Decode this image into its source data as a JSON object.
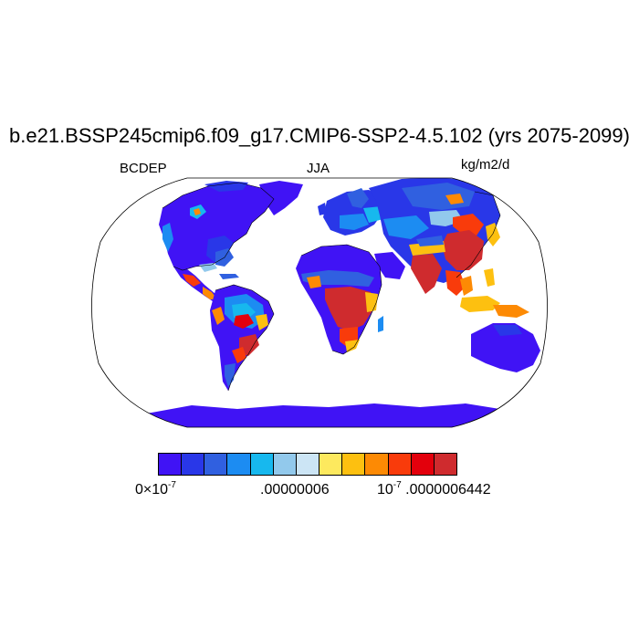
{
  "title": "b.e21.BSSP245cmip6.f09_g17.CMIP6-SSP2-4.5.102 (yrs 2075-2099)",
  "left_label": "BCDEP",
  "center_label": "JJA",
  "right_label": "kg/m2/d",
  "colorbar": {
    "colors": [
      "#4013f5",
      "#2937e8",
      "#3060e0",
      "#1c8cf2",
      "#17b8ee",
      "#92c9ec",
      "#cce5f5",
      "#fde95e",
      "#fdc010",
      "#fd8a04",
      "#f93b0b",
      "#e3000c",
      "#cf2b2e"
    ],
    "label_min_base": "0×10",
    "label_min_exp": "-7",
    "label_mid": ".00000006",
    "label_max_base": "10",
    "label_max_exp": "-7",
    "label_max_value": ".0000006442"
  },
  "map": {
    "projection": "robinson",
    "ocean_color": "#ffffff",
    "land_base_color": "#4013f5",
    "coastline_color": "#000000"
  }
}
